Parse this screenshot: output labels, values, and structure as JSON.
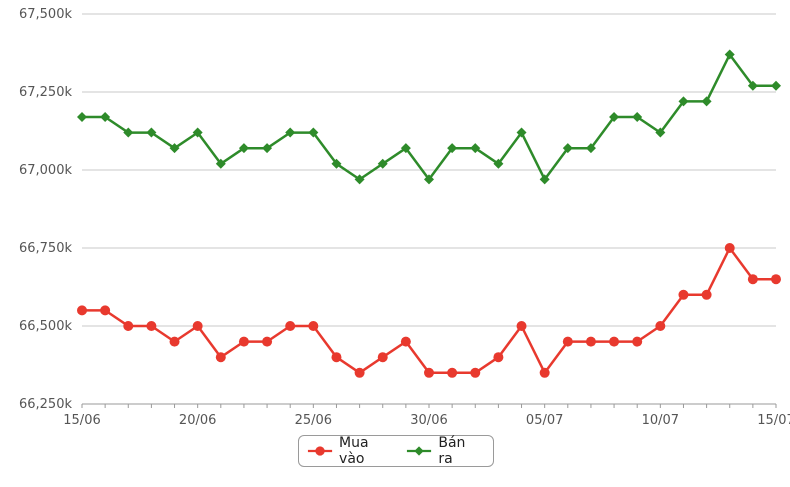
{
  "chart_data": {
    "type": "line",
    "x": [
      "15/06",
      "16/06",
      "17/06",
      "18/06",
      "19/06",
      "20/06",
      "21/06",
      "22/06",
      "23/06",
      "24/06",
      "25/06",
      "26/06",
      "27/06",
      "28/06",
      "29/06",
      "30/06",
      "01/07",
      "02/07",
      "03/07",
      "04/07",
      "05/07",
      "06/07",
      "07/07",
      "08/07",
      "09/07",
      "10/07",
      "11/07",
      "12/07",
      "13/07",
      "14/07",
      "15/07"
    ],
    "x_tick_labels": [
      "15/06",
      "20/06",
      "25/06",
      "30/06",
      "05/07",
      "10/07",
      "15/07"
    ],
    "y_tick_labels": [
      "66,250k",
      "66,500k",
      "66,750k",
      "67,000k",
      "67,250k",
      "67,500k"
    ],
    "y_ticks": [
      66250,
      66500,
      66750,
      67000,
      67250,
      67500
    ],
    "ylim": [
      66250,
      67500
    ],
    "grid": "horizontal",
    "legend_position": "bottom-center",
    "series": [
      {
        "name": "Mua vào",
        "color": "#e8392e",
        "marker": "circle",
        "values": [
          66550,
          66550,
          66500,
          66500,
          66450,
          66500,
          66400,
          66450,
          66450,
          66500,
          66500,
          66400,
          66350,
          66400,
          66450,
          66350,
          66350,
          66350,
          66400,
          66500,
          66350,
          66450,
          66450,
          66450,
          66450,
          66500,
          66600,
          66600,
          66750,
          66650,
          66650
        ]
      },
      {
        "name": "Bán ra",
        "color": "#2e8b2a",
        "marker": "diamond",
        "values": [
          67170,
          67170,
          67120,
          67120,
          67070,
          67120,
          67020,
          67070,
          67070,
          67120,
          67120,
          67020,
          66970,
          67020,
          67070,
          66970,
          67070,
          67070,
          67020,
          67120,
          66970,
          67070,
          67070,
          67170,
          67170,
          67120,
          67220,
          67220,
          67370,
          67270,
          67270
        ]
      }
    ]
  }
}
